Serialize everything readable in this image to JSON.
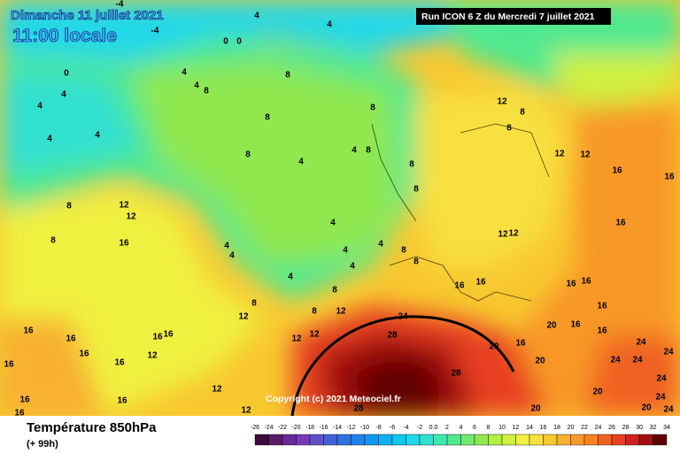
{
  "header": {
    "date": "Dimanche 11 juillet 2021",
    "time": "11:00 locale",
    "run": "Run ICON 6 Z du Mercredi 7 juillet 2021"
  },
  "copyright": "Copyright (c) 2021 Meteociel.fr",
  "footer": {
    "title": "Température 850hPa",
    "subtitle": "(+ 99h)"
  },
  "colorbar": {
    "ticks": [
      -26,
      -24,
      -22,
      -20,
      -18,
      -16,
      -14,
      -12,
      -10,
      -8,
      -6,
      -4,
      -2,
      {
        "value": 0,
        "label": "0.0"
      },
      2,
      4,
      6,
      8,
      10,
      12,
      14,
      16,
      18,
      20,
      22,
      24,
      26,
      28,
      30,
      32,
      34
    ],
    "colors": [
      "#3b0a3b",
      "#5a1a6a",
      "#6a2a9a",
      "#7a3ab8",
      "#6050c8",
      "#4060d8",
      "#3070e0",
      "#2080e8",
      "#1098f0",
      "#10b0f0",
      "#10c8f0",
      "#20d8e8",
      "#30e0d0",
      "#40e8b0",
      "#50e890",
      "#70e870",
      "#90e850",
      "#b0f040",
      "#d0f040",
      "#f0f040",
      "#f8e040",
      "#f8c830",
      "#f8b030",
      "#f89828",
      "#f88020",
      "#f06020",
      "#e84020",
      "#d02020",
      "#a01010",
      "#600000"
    ]
  },
  "contour_labels": [
    -4,
    -4,
    4,
    4,
    0,
    0,
    0,
    4,
    4,
    4,
    4,
    8,
    8,
    8,
    8,
    12,
    8,
    8,
    4,
    4,
    8,
    4,
    4,
    8,
    8,
    8,
    12,
    12,
    16,
    16,
    8,
    12,
    12,
    8,
    16,
    4,
    4,
    4,
    4,
    4,
    12,
    12,
    16,
    8,
    8,
    4,
    4,
    8,
    16,
    16,
    16,
    16,
    16,
    8,
    12,
    8,
    12,
    24,
    20,
    16,
    16,
    16,
    16,
    16,
    16,
    16,
    16,
    16,
    12,
    12,
    12,
    28,
    28,
    20,
    16,
    20,
    24,
    24,
    24,
    24,
    24,
    12,
    16,
    16,
    16,
    12,
    28,
    20,
    20,
    20,
    24,
    24
  ]
}
